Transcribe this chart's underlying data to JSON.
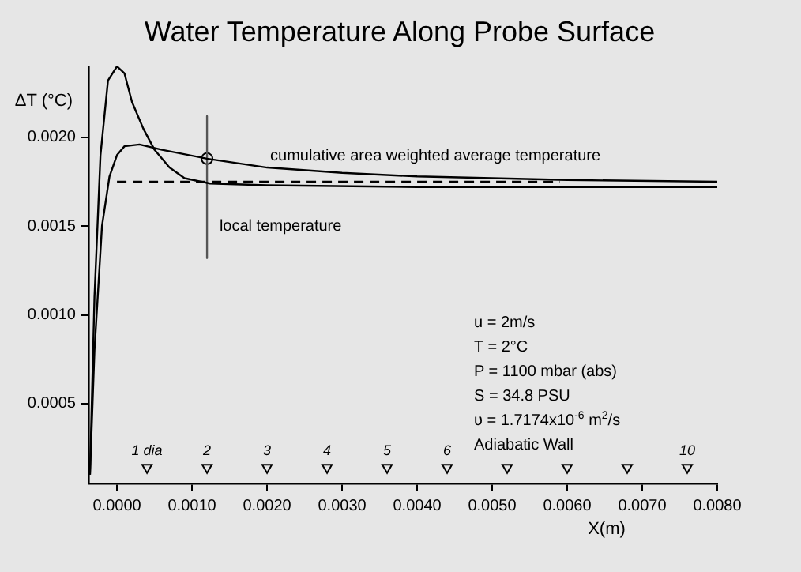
{
  "chart_data": {
    "type": "line",
    "title": "Water Temperature Along Probe Surface",
    "xlabel": "X(m)",
    "ylabel": "ΔT (°C)",
    "xlim": [
      -0.00038,
      0.008
    ],
    "ylim": [
      5e-05,
      0.0024
    ],
    "xticks": [
      {
        "value": 0,
        "label": "0.0000"
      },
      {
        "value": 0.001,
        "label": "0.0010"
      },
      {
        "value": 0.002,
        "label": "0.0020"
      },
      {
        "value": 0.003,
        "label": "0.0030"
      },
      {
        "value": 0.004,
        "label": "0.0040"
      },
      {
        "value": 0.005,
        "label": "0.0050"
      },
      {
        "value": 0.006,
        "label": "0.0060"
      },
      {
        "value": 0.007,
        "label": "0.0070"
      },
      {
        "value": 0.008,
        "label": "0.0080"
      }
    ],
    "yticks": [
      {
        "value": 0.0005,
        "label": "0.0005"
      },
      {
        "value": 0.001,
        "label": "0.0010"
      },
      {
        "value": 0.0015,
        "label": "0.0015"
      },
      {
        "value": 0.002,
        "label": "0.0020"
      }
    ],
    "grid": false,
    "legend": false,
    "series": [
      {
        "name": "local temperature",
        "color": "#000000",
        "line_style": "solid",
        "marker": "none",
        "x": [
          -0.00036,
          -0.0003,
          -0.00022,
          -0.00012,
          0,
          0.0001,
          0.0002,
          0.00035,
          0.0005,
          0.0007,
          0.0009,
          0.00124,
          0.002,
          0.004,
          0.008
        ],
        "values": [
          0.0001,
          0.0011,
          0.0019,
          0.00232,
          0.0024,
          0.00236,
          0.0022,
          0.00205,
          0.00193,
          0.00183,
          0.00177,
          0.00174,
          0.00173,
          0.00172,
          0.00172
        ]
      },
      {
        "name": "cumulative area weighted average temperature",
        "color": "#000000",
        "line_style": "solid",
        "marker": "none",
        "x": [
          -0.00036,
          -0.0003,
          -0.0002,
          -0.0001,
          0,
          0.0001,
          0.0003,
          0.0006,
          0.0012,
          0.002,
          0.003,
          0.004,
          0.006,
          0.008
        ],
        "values": [
          0.0001,
          0.0008,
          0.0015,
          0.00178,
          0.0019,
          0.00195,
          0.00196,
          0.00193,
          0.00188,
          0.00183,
          0.0018,
          0.00178,
          0.00176,
          0.00175
        ]
      },
      {
        "color": "#000000",
        "line_style": "dashed",
        "marker": "none",
        "x": [
          0,
          0.0059
        ],
        "values": [
          0.00175,
          0.00175
        ]
      },
      {
        "color": "#555555",
        "line_style": "solid",
        "marker": "none",
        "x": [
          0.0012,
          0.0012
        ],
        "values": [
          0.00212,
          0.00132
        ]
      },
      {
        "type": "scatter",
        "color": "#000000",
        "marker": "circle",
        "x": [
          0.0012
        ],
        "values": [
          0.00188
        ]
      },
      {
        "type": "scatter",
        "color": "#000000",
        "marker": "triangle",
        "x": [
          0.0004,
          0.0012,
          0.002,
          0.0028,
          0.0036,
          0.0044,
          0.0052,
          0.006,
          0.0068,
          0.0076
        ],
        "values": [
          0.00014,
          0.00014,
          0.00014,
          0.00014,
          0.00014,
          0.00014,
          0.00014,
          0.00014,
          0.00014,
          0.00014
        ]
      }
    ],
    "annotations": [
      {
        "text": "1 dia",
        "x": 0.0004,
        "y": 0.00014
      },
      {
        "text": "2",
        "x": 0.0012,
        "y": 0.00014
      },
      {
        "text": "3",
        "x": 0.002,
        "y": 0.00014
      },
      {
        "text": "4",
        "x": 0.0028,
        "y": 0.00014
      },
      {
        "text": "5",
        "x": 0.0036,
        "y": 0.00014
      },
      {
        "text": "6",
        "x": 0.0044,
        "y": 0.00014
      },
      {
        "text": "10",
        "x": 0.0076,
        "y": 0.00014
      },
      "u = 2m/s",
      "T = 2°C",
      "P = 1100 mbar (abs)",
      "S = 34.8 PSU",
      "υ = 1.7174x10$^{-6}$ m$^{2}$/s",
      "Adiabatic Wall"
    ]
  }
}
